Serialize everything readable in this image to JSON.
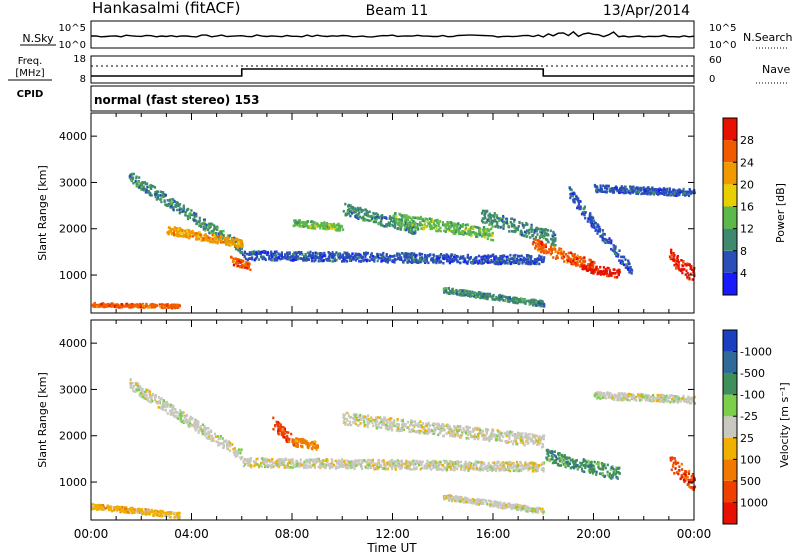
{
  "header": {
    "station": "Hankasalmi (fitACF)",
    "beam": "Beam 11",
    "date": "13/Apr/2014"
  },
  "top_panels": {
    "nsky": {
      "label": "N.Sky",
      "ticks": [
        "10^5",
        "10^0"
      ],
      "right_label": "N.Search",
      "right_ticks": [
        "10^5",
        "10^0"
      ]
    },
    "freq": {
      "label": "Freq.",
      "unit": "[MHz]",
      "ticks": [
        "18",
        "8"
      ],
      "right_label": "Nave",
      "right_ticks": [
        "60",
        "0"
      ]
    },
    "cpid": {
      "label": "CPID",
      "value": "normal (fast stereo) 153"
    }
  },
  "chart_data": [
    {
      "type": "heatmap",
      "name": "power",
      "ylabel": "Slant Range [km]",
      "xlabel": "",
      "yticks": [
        1000,
        2000,
        3000,
        4000
      ],
      "ylim": [
        180,
        4500
      ],
      "xlim_hours": [
        0,
        24
      ],
      "colorbar": {
        "label": "Power [dB]",
        "ticks": [
          "4",
          "8",
          "12",
          "16",
          "20",
          "24",
          "28"
        ],
        "colors": [
          "#1a1aff",
          "#2a4fb8",
          "#3f8a6e",
          "#5db84a",
          "#e8d000",
          "#f09a00",
          "#f05a00",
          "#e81000"
        ]
      },
      "range_km": [
        0,
        32
      ],
      "blobs": [
        {
          "t": [
            1.5,
            6.0
          ],
          "r": [
            3150,
            1600
          ],
          "c": 2,
          "w": 240
        },
        {
          "t": [
            3.0,
            6.0
          ],
          "r": [
            2000,
            1700
          ],
          "c": 5,
          "w": 180
        },
        {
          "t": [
            5.5,
            6.3
          ],
          "r": [
            1350,
            1200
          ],
          "c": 6,
          "w": 160
        },
        {
          "t": [
            6.0,
            18.0
          ],
          "r": [
            1450,
            1350
          ],
          "c": 1,
          "w": 200
        },
        {
          "t": [
            8.0,
            10.0
          ],
          "r": [
            2150,
            2050
          ],
          "c": 3,
          "w": 150
        },
        {
          "t": [
            10.0,
            13.0
          ],
          "r": [
            2450,
            2000
          ],
          "c": 2,
          "w": 250
        },
        {
          "t": [
            12.0,
            16.0
          ],
          "r": [
            2250,
            1900
          ],
          "c": 3,
          "w": 250
        },
        {
          "t": [
            15.5,
            18.5
          ],
          "r": [
            2300,
            1800
          ],
          "c": 2,
          "w": 300
        },
        {
          "t": [
            17.5,
            20.0
          ],
          "r": [
            1700,
            1200
          ],
          "c": 6,
          "w": 250
        },
        {
          "t": [
            19.0,
            21.5
          ],
          "r": [
            2800,
            1100
          ],
          "c": 1,
          "w": 250
        },
        {
          "t": [
            19.5,
            21.0
          ],
          "r": [
            1200,
            1050
          ],
          "c": 7,
          "w": 180
        },
        {
          "t": [
            20.0,
            24.0
          ],
          "r": [
            2900,
            2800
          ],
          "c": 1,
          "w": 150
        },
        {
          "t": [
            23.0,
            24.0
          ],
          "r": [
            1450,
            1000
          ],
          "c": 7,
          "w": 350
        },
        {
          "t": [
            14.0,
            18.0
          ],
          "r": [
            700,
            400
          ],
          "c": 2,
          "w": 120
        },
        {
          "t": [
            0.0,
            3.5
          ],
          "r": [
            380,
            350
          ],
          "c": 6,
          "w": 80
        }
      ]
    },
    {
      "type": "heatmap",
      "name": "velocity",
      "ylabel": "Slant Range [km]",
      "xlabel": "Time UT",
      "xticks": [
        "00:00",
        "04:00",
        "08:00",
        "12:00",
        "16:00",
        "20:00",
        "00:00"
      ],
      "yticks": [
        1000,
        2000,
        3000,
        4000
      ],
      "ylim": [
        180,
        4500
      ],
      "xlim_hours": [
        0,
        24
      ],
      "colorbar": {
        "label": "Velocity [m s⁻¹]",
        "ticks": [
          "1000",
          "500",
          "100",
          "25",
          "-25",
          "-100",
          "-500",
          "-1000"
        ],
        "colors": [
          "#1a3fc0",
          "#2f6a9a",
          "#3f8f5a",
          "#7ccf4a",
          "#c8c8c0",
          "#f0b000",
          "#f07a00",
          "#f04000",
          "#e81000"
        ]
      },
      "blobs": [
        {
          "t": [
            1.5,
            6.0
          ],
          "r": [
            3150,
            1600
          ],
          "c": 4,
          "w": 240
        },
        {
          "t": [
            6.0,
            18.0
          ],
          "r": [
            1450,
            1350
          ],
          "c": 4,
          "w": 200
        },
        {
          "t": [
            10.0,
            18.0
          ],
          "r": [
            2400,
            1900
          ],
          "c": 4,
          "w": 260
        },
        {
          "t": [
            7.2,
            8.0
          ],
          "r": [
            2300,
            1900
          ],
          "c": 7,
          "w": 250
        },
        {
          "t": [
            8.0,
            9.0
          ],
          "r": [
            1900,
            1800
          ],
          "c": 6,
          "w": 180
        },
        {
          "t": [
            18.0,
            21.0
          ],
          "r": [
            1600,
            1200
          ],
          "c": 2,
          "w": 280
        },
        {
          "t": [
            20.0,
            24.0
          ],
          "r": [
            2900,
            2800
          ],
          "c": 4,
          "w": 150
        },
        {
          "t": [
            23.0,
            24.0
          ],
          "r": [
            1450,
            1000
          ],
          "c": 7,
          "w": 350
        },
        {
          "t": [
            14.0,
            18.0
          ],
          "r": [
            700,
            400
          ],
          "c": 4,
          "w": 120
        },
        {
          "t": [
            0.0,
            3.5
          ],
          "r": [
            500,
            300
          ],
          "c": 5,
          "w": 120
        }
      ]
    }
  ]
}
